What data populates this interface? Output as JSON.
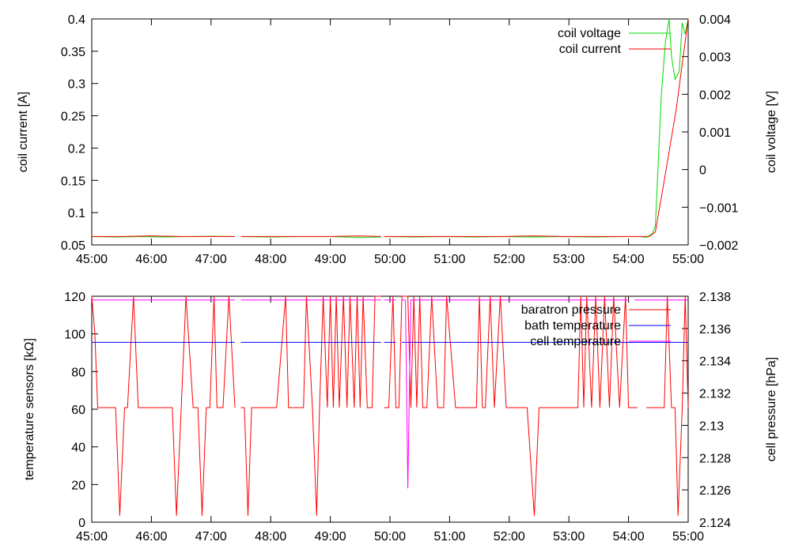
{
  "chart_data": [
    {
      "type": "line",
      "title": "",
      "xlabel": "",
      "ylabel": "coil current [A]",
      "y2label": "coil voltage [V]",
      "xlim": [
        45,
        55
      ],
      "ylim": [
        0.05,
        0.4
      ],
      "y2lim": [
        -0.002,
        0.004
      ],
      "x_ticks": [
        "45:00",
        "46:00",
        "47:00",
        "48:00",
        "49:00",
        "50:00",
        "51:00",
        "52:00",
        "53:00",
        "54:00",
        "55:00"
      ],
      "y_ticks": [
        "0.05",
        "0.1",
        "0.15",
        "0.2",
        "0.25",
        "0.3",
        "0.35",
        "0.4"
      ],
      "y2_ticks": [
        "−0.002",
        "−0.001",
        "0",
        "0.001",
        "0.002",
        "0.003",
        "0.004"
      ],
      "legend_position": "top-right",
      "grid": false,
      "series": [
        {
          "name": "coil voltage",
          "axis": "y2",
          "color": "#00dd00",
          "x": [
            45.0,
            45.4,
            45.8,
            46.2,
            46.6,
            47.0,
            47.4,
            null,
            47.5,
            48.0,
            48.5,
            49.0,
            49.5,
            49.85,
            null,
            49.9,
            50.4,
            50.9,
            51.4,
            51.9,
            52.4,
            52.9,
            53.4,
            53.9,
            54.2,
            54.3,
            54.4,
            54.45,
            54.55,
            54.62,
            54.68,
            54.72,
            54.78,
            54.85,
            54.9,
            54.95,
            55.0
          ],
          "y": [
            -0.00178,
            -0.00179,
            -0.00178,
            -0.00179,
            -0.00178,
            -0.00177,
            -0.00178,
            null,
            -0.00178,
            -0.00179,
            -0.00178,
            -0.00178,
            -0.0018,
            -0.00179,
            null,
            -0.00178,
            -0.00179,
            -0.00178,
            -0.00179,
            -0.00178,
            -0.00179,
            -0.00178,
            -0.00179,
            -0.00178,
            -0.00178,
            -0.0018,
            -0.0017,
            -0.0015,
            0.002,
            0.0034,
            0.004,
            0.003,
            0.0024,
            0.0026,
            0.0039,
            0.0036,
            0.004
          ]
        },
        {
          "name": "coil current",
          "axis": "y",
          "color": "#ff0000",
          "x": [
            45.0,
            45.5,
            46.0,
            46.5,
            47.0,
            47.4,
            null,
            47.5,
            48.0,
            48.5,
            49.0,
            49.5,
            49.85,
            null,
            49.9,
            50.4,
            50.9,
            51.4,
            51.9,
            52.4,
            52.9,
            53.4,
            53.9,
            54.2,
            54.3,
            54.35,
            54.45,
            54.6,
            54.8,
            55.0
          ],
          "y": [
            0.063,
            0.063,
            0.064,
            0.063,
            0.063,
            0.063,
            null,
            0.063,
            0.063,
            0.063,
            0.063,
            0.064,
            0.063,
            null,
            0.063,
            0.063,
            0.063,
            0.063,
            0.063,
            0.064,
            0.063,
            0.063,
            0.063,
            0.063,
            0.063,
            0.063,
            0.07,
            0.15,
            0.26,
            0.4
          ]
        }
      ]
    },
    {
      "type": "line",
      "title": "",
      "xlabel": "",
      "ylabel": "temperature sensors [kΩ]",
      "y2label": "cell pressure [hPa]",
      "xlim": [
        45,
        55
      ],
      "ylim": [
        0,
        120
      ],
      "y2lim": [
        2.124,
        2.138
      ],
      "x_ticks": [
        "45:00",
        "46:00",
        "47:00",
        "48:00",
        "49:00",
        "50:00",
        "51:00",
        "52:00",
        "53:00",
        "54:00",
        "55:00"
      ],
      "y_ticks": [
        "0",
        "20",
        "40",
        "60",
        "80",
        "100",
        "120"
      ],
      "y2_ticks": [
        "2.124",
        "2.126",
        "2.128",
        "2.13",
        "2.132",
        "2.134",
        "2.136",
        "2.138"
      ],
      "legend_position": "top-right",
      "grid": false,
      "series": [
        {
          "name": "baratron pressure",
          "axis": "y2",
          "color": "#ff0000",
          "x": [
            45.0,
            45.05,
            45.1,
            45.3,
            45.4,
            45.47,
            45.55,
            45.6,
            45.7,
            45.78,
            46.0,
            46.3,
            46.35,
            46.42,
            46.5,
            46.58,
            46.7,
            46.78,
            46.85,
            46.92,
            46.98,
            47.05,
            47.1,
            47.2,
            47.3,
            47.4,
            null,
            47.5,
            47.56,
            47.62,
            47.68,
            47.75,
            47.9,
            47.98,
            48.1,
            48.25,
            48.3,
            48.4,
            48.55,
            48.6,
            48.7,
            48.77,
            48.82,
            48.88,
            48.95,
            49.0,
            49.05,
            49.1,
            49.15,
            49.22,
            49.28,
            49.33,
            49.4,
            49.45,
            49.5,
            49.55,
            49.62,
            49.7,
            49.75,
            49.85,
            null,
            49.9,
            49.98,
            50.05,
            50.1,
            50.15,
            50.2,
            50.3,
            50.35,
            50.4,
            50.45,
            50.5,
            50.55,
            50.62,
            50.7,
            50.8,
            50.85,
            50.9,
            50.95,
            51.1,
            51.2,
            51.3,
            51.4,
            51.45,
            51.5,
            51.55,
            51.6,
            51.68,
            51.75,
            51.85,
            51.95,
            52.1,
            52.2,
            52.3,
            52.42,
            52.5,
            52.6,
            52.8,
            53.0,
            53.05,
            53.1,
            53.15,
            53.2,
            53.25,
            53.3,
            53.38,
            53.45,
            53.52,
            53.6,
            53.68,
            53.75,
            53.85,
            53.95,
            54.0,
            54.05,
            54.15,
            null,
            54.3,
            54.45,
            54.6,
            54.65,
            54.72,
            54.78,
            54.83,
            54.9,
            54.95,
            55.0
          ],
          "y": [
            2.138,
            2.1358,
            2.1311,
            2.1311,
            2.1311,
            2.1244,
            2.1311,
            2.1311,
            2.138,
            2.1311,
            2.1311,
            2.1311,
            2.1311,
            2.1244,
            2.1311,
            2.138,
            2.1311,
            2.1311,
            2.1244,
            2.1311,
            2.1311,
            2.138,
            2.1311,
            2.1311,
            2.138,
            2.1311,
            null,
            2.1311,
            2.1311,
            2.1244,
            2.1311,
            2.1311,
            2.1311,
            2.1311,
            2.1311,
            2.138,
            2.1311,
            2.1311,
            2.1311,
            2.138,
            2.1311,
            2.1244,
            2.1311,
            2.138,
            2.1311,
            2.138,
            2.1311,
            2.138,
            2.1311,
            2.138,
            2.1311,
            2.138,
            2.1311,
            2.138,
            2.1311,
            2.138,
            2.1311,
            2.1311,
            2.138,
            2.138,
            null,
            2.1311,
            2.1311,
            2.138,
            2.1311,
            2.1311,
            2.138,
            2.138,
            2.1311,
            2.138,
            2.1311,
            2.138,
            2.1311,
            2.1311,
            2.138,
            2.1311,
            2.1311,
            2.1311,
            2.138,
            2.1311,
            2.1311,
            2.1311,
            2.1311,
            2.1311,
            2.138,
            2.1311,
            2.1311,
            2.138,
            2.1311,
            2.138,
            2.1311,
            2.1311,
            2.1311,
            2.1311,
            2.1244,
            2.1311,
            2.1311,
            2.1311,
            2.1311,
            2.1311,
            2.1311,
            2.1311,
            2.138,
            2.1311,
            2.138,
            2.1311,
            2.138,
            2.1311,
            2.138,
            2.1311,
            2.138,
            2.1311,
            2.138,
            2.1311,
            2.1311,
            2.1311,
            null,
            2.1311,
            2.1311,
            2.1311,
            2.138,
            2.1311,
            2.1311,
            2.1244,
            2.1311,
            2.138,
            2.1311
          ]
        },
        {
          "name": "bath temperature",
          "axis": "y",
          "color": "#0000ff",
          "x": [
            45.0,
            47.4,
            null,
            47.5,
            49.85,
            null,
            49.9,
            50.1,
            null,
            50.2,
            55.0
          ],
          "y": [
            95.5,
            95.5,
            null,
            95.5,
            95.5,
            null,
            95.5,
            95.5,
            null,
            95.5,
            95.5
          ]
        },
        {
          "name": "cell temperature",
          "axis": "y",
          "color": "#ff00ff",
          "x": [
            45.0,
            47.4,
            null,
            47.5,
            49.85,
            null,
            49.9,
            50.1,
            null,
            50.2,
            50.26,
            50.3,
            50.35,
            54.0,
            null,
            54.1,
            55.0
          ],
          "y": [
            118,
            118,
            null,
            118,
            118,
            null,
            118,
            118,
            null,
            118,
            118,
            18,
            118,
            118,
            null,
            118,
            118
          ]
        }
      ]
    }
  ]
}
